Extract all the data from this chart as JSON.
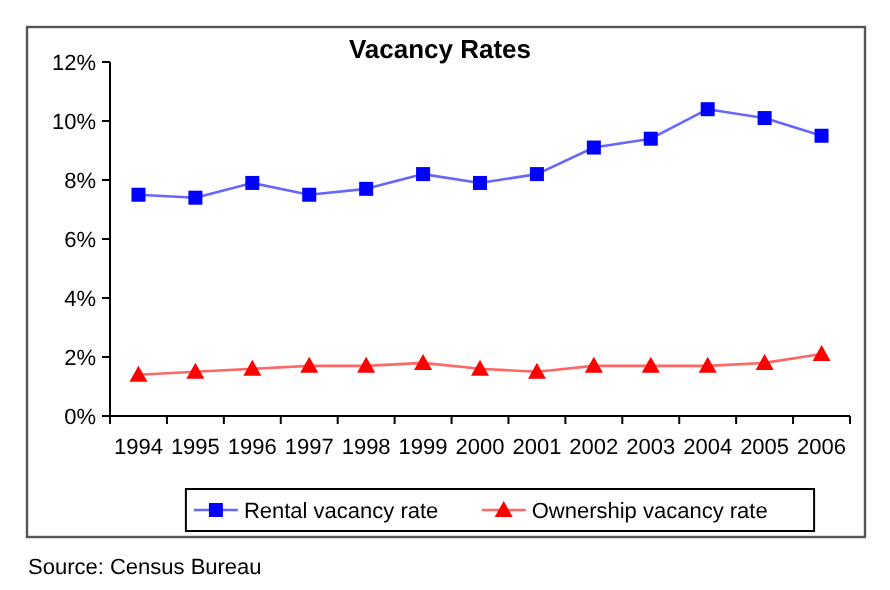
{
  "chart_data": {
    "type": "line",
    "title": "Vacancy Rates",
    "categories": [
      "1994",
      "1995",
      "1996",
      "1997",
      "1998",
      "1999",
      "2000",
      "2001",
      "2002",
      "2003",
      "2004",
      "2005",
      "2006"
    ],
    "series": [
      {
        "name": "Rental vacancy rate",
        "color": "#0000ff",
        "marker": "square",
        "values": [
          7.5,
          7.4,
          7.9,
          7.5,
          7.7,
          8.2,
          7.9,
          8.2,
          9.1,
          9.4,
          10.4,
          10.1,
          9.5
        ]
      },
      {
        "name": "Ownership vacancy rate",
        "color": "#ff0000",
        "marker": "triangle",
        "values": [
          1.4,
          1.5,
          1.6,
          1.7,
          1.7,
          1.8,
          1.6,
          1.5,
          1.7,
          1.7,
          1.7,
          1.8,
          2.1
        ]
      }
    ],
    "ylim": [
      0,
      12
    ],
    "yticks": [
      {
        "value": 0,
        "label": "0%"
      },
      {
        "value": 2,
        "label": "2%"
      },
      {
        "value": 4,
        "label": "4%"
      },
      {
        "value": 6,
        "label": "6%"
      },
      {
        "value": 8,
        "label": "8%"
      },
      {
        "value": 10,
        "label": "10%"
      },
      {
        "value": 12,
        "label": "12%"
      }
    ],
    "grid": false,
    "legend": "bottom",
    "line_style": "solid",
    "annotations": [
      "Source: Census Bureau"
    ]
  }
}
